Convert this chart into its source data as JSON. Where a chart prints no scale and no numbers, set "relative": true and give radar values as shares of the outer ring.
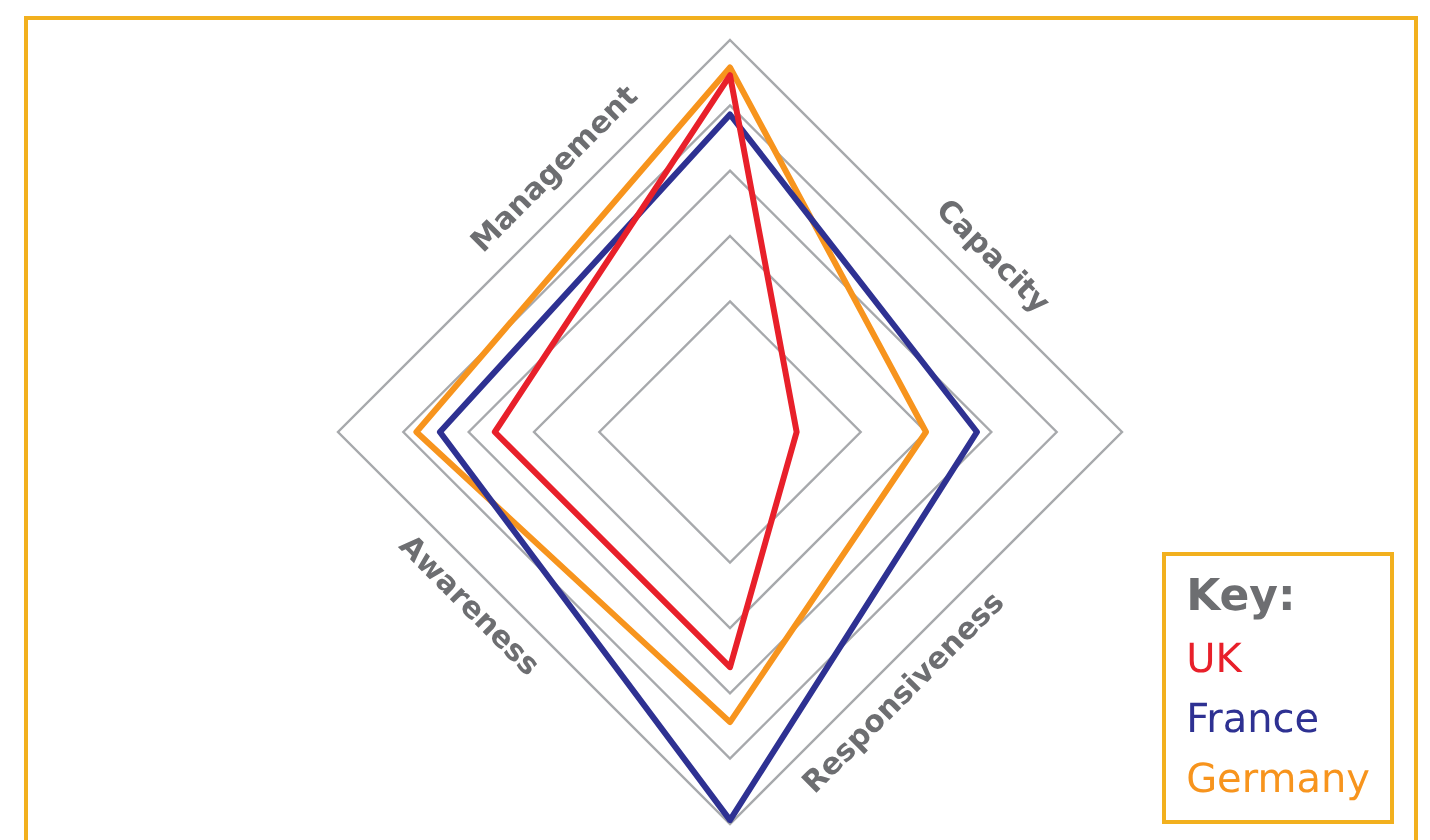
{
  "chart_data": {
    "type": "radar",
    "relative": true,
    "categories": [
      "Management",
      "Capacity",
      "Responsiveness",
      "Awareness"
    ],
    "legend": "bottom right",
    "legend_title": "Key:",
    "series": [
      {
        "name": "UK",
        "color": "#e8202a",
        "values": [
          0.91,
          0.17,
          0.6,
          0.6
        ]
      },
      {
        "name": "France",
        "color": "#2e3192",
        "values": [
          0.81,
          0.63,
          0.99,
          0.74
        ]
      },
      {
        "name": "Germany",
        "color": "#f7941d",
        "values": [
          0.93,
          0.5,
          0.74,
          0.8
        ]
      }
    ]
  }
}
